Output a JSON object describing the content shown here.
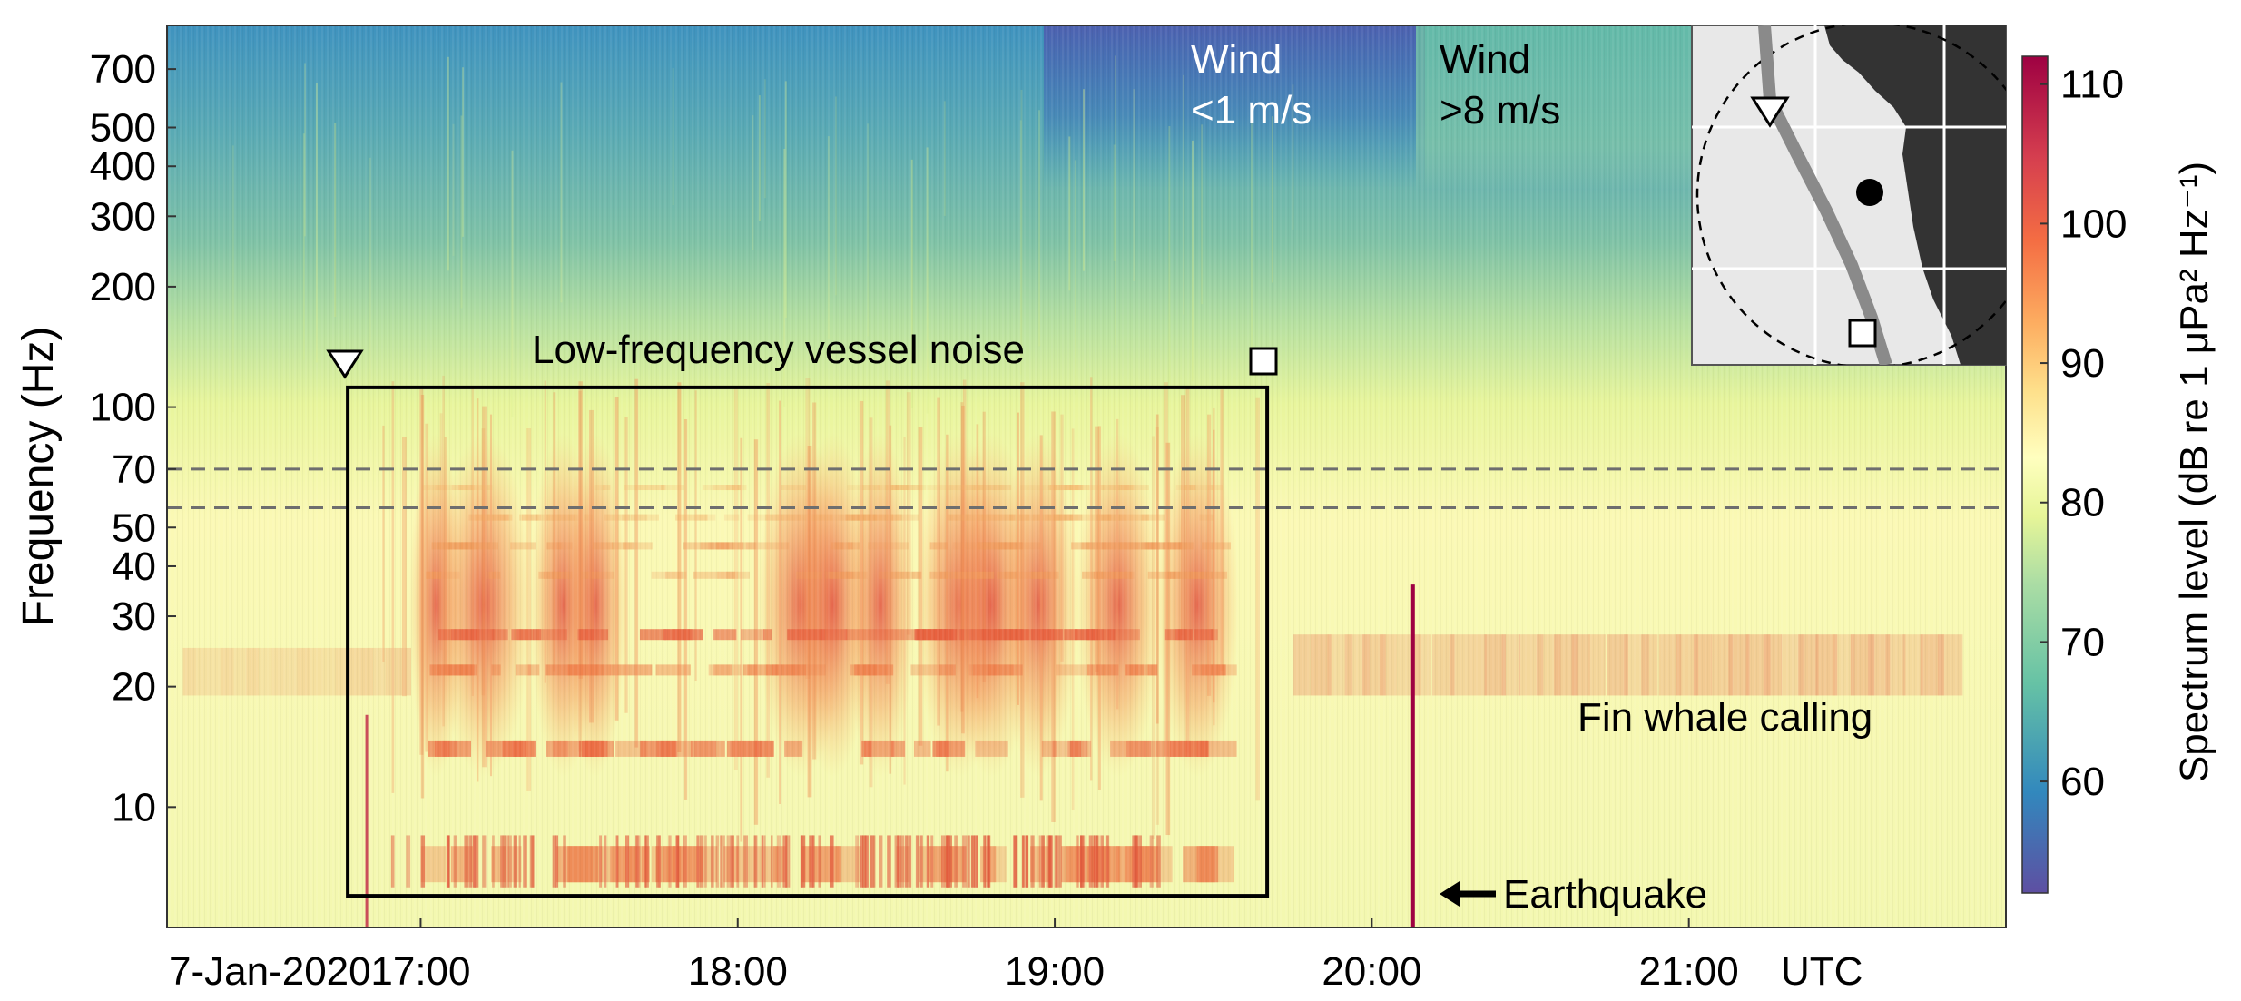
{
  "chart_data": {
    "type": "heatmap",
    "title": "",
    "ylabel": "Frequency (Hz)",
    "xlabel": "",
    "x_start_label": "7-Jan-2020",
    "x_unit_label": "UTC",
    "x_ticks": [
      {
        "label": "17:00",
        "hour": 17
      },
      {
        "label": "18:00",
        "hour": 18
      },
      {
        "label": "19:00",
        "hour": 19
      },
      {
        "label": "20:00",
        "hour": 20
      },
      {
        "label": "21:00",
        "hour": 21
      }
    ],
    "xlim_hours": [
      16.2,
      22.0
    ],
    "y_scale": "log",
    "ylim": [
      5,
      900
    ],
    "y_ticks": [
      10,
      20,
      30,
      40,
      50,
      70,
      100,
      200,
      300,
      400,
      500,
      700
    ],
    "colorbar": {
      "label": "Spectrum level (dB re 1 μPa² Hz⁻¹)",
      "range": [
        52,
        112
      ],
      "ticks": [
        60,
        70,
        80,
        90,
        100,
        110
      ],
      "colormap": [
        "#5e4fa2",
        "#3288bd",
        "#66c2a5",
        "#abdda4",
        "#e6f598",
        "#ffffbf",
        "#fee08b",
        "#fdae61",
        "#f46d43",
        "#d53e4f",
        "#9e0142"
      ]
    },
    "annotations": {
      "vessel_label": "Low-frequency vessel noise",
      "vessel_box": {
        "start_hour": 16.77,
        "end_hour": 19.67,
        "freq_low": 6.0,
        "freq_high": 112
      },
      "fin_whale_label": "Fin whale calling",
      "earthquake_label": "Earthquake",
      "earthquake_hour": 20.13,
      "wind_low_title": "Wind",
      "wind_low_value": "<1 m/s",
      "wind_high_title": "Wind",
      "wind_high_value": ">8 m/s",
      "dashed_lines_hz": [
        70,
        56
      ]
    },
    "inset_map": {
      "land_color": "#333333",
      "sea_color": "#e8e8e8",
      "track_color": "#8a8a8a"
    }
  }
}
